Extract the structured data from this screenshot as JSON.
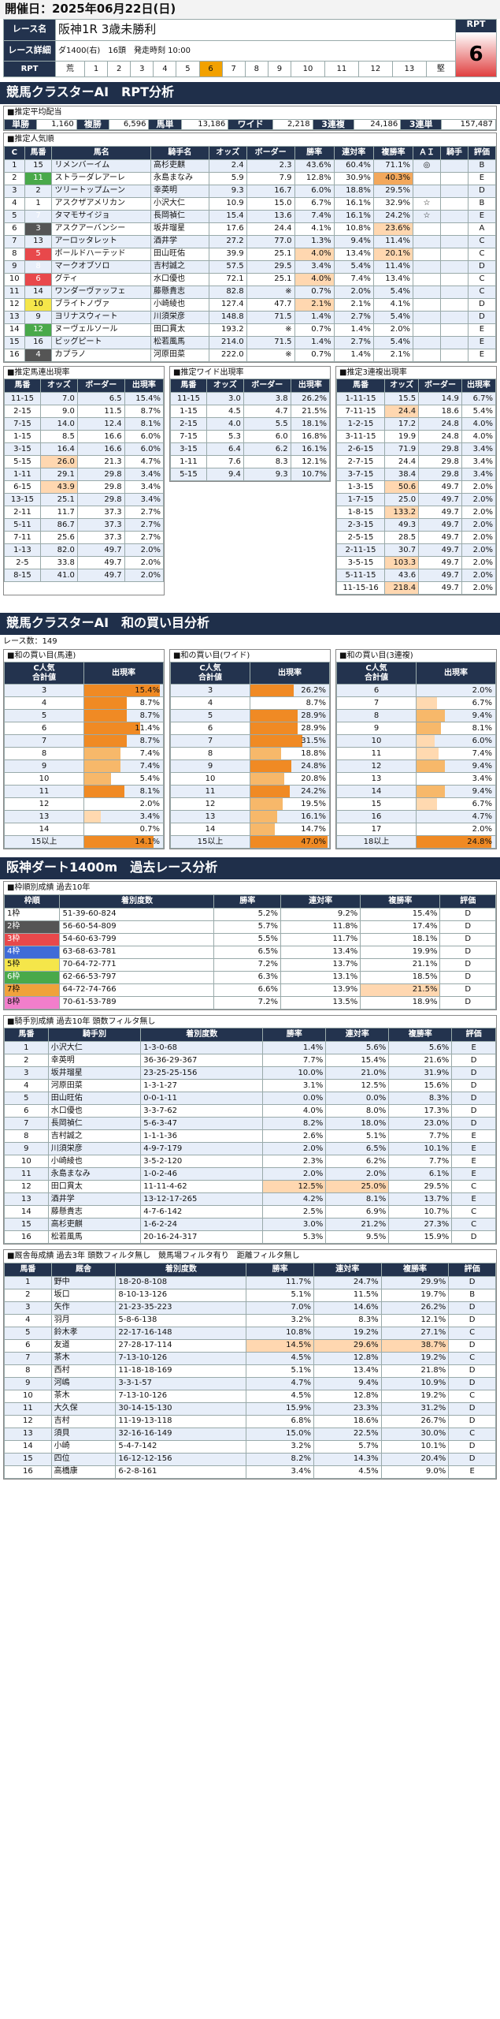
{
  "header": {
    "date": "開催日：2025年06月22日(日)"
  },
  "race": {
    "name_label": "レース名",
    "name": "阪神1R 3歳未勝利",
    "detail_label": "レース詳細",
    "detail": "ダ1400(右)　16頭　発走時刻 10:00",
    "rpt_label": "RPT",
    "rpt_box_label": "RPT",
    "rpt_value": "6",
    "rpt_scale": [
      "荒",
      "1",
      "2",
      "3",
      "4",
      "5",
      "6",
      "7",
      "8",
      "9",
      "10",
      "11",
      "12",
      "13",
      "堅"
    ]
  },
  "rpt_section": {
    "title": "競馬クラスターAI　RPT分析",
    "payout_title": "■推定平均配当",
    "payouts": [
      {
        "k": "単勝",
        "v": "1,160"
      },
      {
        "k": "複勝",
        "v": "6,596"
      },
      {
        "k": "馬単",
        "v": "13,186"
      },
      {
        "k": "ワイド",
        "v": "2,218"
      },
      {
        "k": "3連複",
        "v": "24,186"
      },
      {
        "k": "3連単",
        "v": "157,487"
      }
    ],
    "pop_title": "■推定人気順",
    "pop_headers": [
      "C",
      "馬番",
      "馬名",
      "騎手名",
      "オッズ",
      "ボーダー",
      "勝率",
      "連対率",
      "複勝率",
      "ＡＩ",
      "騎手",
      "評価"
    ],
    "pop_rows": [
      [
        "1",
        "15",
        "リメンバーイム",
        "高杉吏麒",
        "2.4",
        "2.3",
        "43.6%",
        "60.4%",
        "71.1%",
        "◎",
        "",
        "B"
      ],
      [
        "2",
        "11",
        "ストラーダレアーレ",
        "永島まなみ",
        "5.9",
        "7.9",
        "12.8%",
        "30.9%",
        "40.3%",
        "",
        "",
        "E"
      ],
      [
        "3",
        "2",
        "ツリートップムーン",
        "幸英明",
        "9.3",
        "16.7",
        "6.0%",
        "18.8%",
        "29.5%",
        "",
        "",
        "D"
      ],
      [
        "4",
        "1",
        "アスクザアメリカン",
        "小沢大仁",
        "10.9",
        "15.0",
        "6.7%",
        "16.1%",
        "32.9%",
        "☆",
        "",
        "B"
      ],
      [
        "5",
        "7",
        "タマモサイジョ",
        "長岡禎仁",
        "15.4",
        "13.6",
        "7.4%",
        "16.1%",
        "24.2%",
        "☆",
        "",
        "E"
      ],
      [
        "6",
        "3",
        "アスクアーバンシー",
        "坂井瑠星",
        "17.6",
        "24.4",
        "4.1%",
        "10.8%",
        "23.6%",
        "",
        "",
        "A"
      ],
      [
        "7",
        "13",
        "アーロッタレット",
        "酒井学",
        "27.2",
        "77.0",
        "1.3%",
        "9.4%",
        "11.4%",
        "",
        "",
        "C"
      ],
      [
        "8",
        "5",
        "ボールドハーテッド",
        "田山旺佑",
        "39.9",
        "25.1",
        "4.0%",
        "13.4%",
        "20.1%",
        "",
        "",
        "C"
      ],
      [
        "9",
        "8",
        "マークオブソロ",
        "吉村誠之",
        "57.5",
        "29.5",
        "3.4%",
        "5.4%",
        "11.4%",
        "",
        "",
        "D"
      ],
      [
        "10",
        "6",
        "グティ",
        "水口優也",
        "72.1",
        "25.1",
        "4.0%",
        "7.4%",
        "13.4%",
        "",
        "",
        "C"
      ],
      [
        "11",
        "14",
        "ワンダーヴァッフェ",
        "藤懸貴志",
        "82.8",
        "※",
        "0.7%",
        "2.0%",
        "5.4%",
        "",
        "",
        "C"
      ],
      [
        "12",
        "10",
        "ブライトノヴァ",
        "小崎綾也",
        "127.4",
        "47.7",
        "2.1%",
        "2.1%",
        "4.1%",
        "",
        "",
        "D"
      ],
      [
        "13",
        "9",
        "ヨリナスウィート",
        "川須栄彦",
        "148.8",
        "71.5",
        "1.4%",
        "2.7%",
        "5.4%",
        "",
        "",
        "D"
      ],
      [
        "14",
        "12",
        "ヌーヴェルソール",
        "田口貫太",
        "193.2",
        "※",
        "0.7%",
        "1.4%",
        "2.0%",
        "",
        "",
        "E"
      ],
      [
        "15",
        "16",
        "ビッグピート",
        "松若風馬",
        "214.0",
        "71.5",
        "1.4%",
        "2.7%",
        "5.4%",
        "",
        "",
        "E"
      ],
      [
        "16",
        "4",
        "カプラノ",
        "河原田菜",
        "222.0",
        "※",
        "0.7%",
        "1.4%",
        "2.1%",
        "",
        "",
        "E"
      ]
    ],
    "umatan_title": "■推定馬連出現率",
    "umatan_headers": [
      "馬番",
      "オッズ",
      "ボーダー",
      "出現率"
    ],
    "umatan_rows": [
      [
        "11-15",
        "7.0",
        "6.5",
        "15.4%"
      ],
      [
        "2-15",
        "9.0",
        "11.5",
        "8.7%"
      ],
      [
        "7-15",
        "14.0",
        "12.4",
        "8.1%"
      ],
      [
        "1-15",
        "8.5",
        "16.6",
        "6.0%"
      ],
      [
        "3-15",
        "16.4",
        "16.6",
        "6.0%"
      ],
      [
        "5-15",
        "26.0",
        "21.3",
        "4.7%"
      ],
      [
        "1-11",
        "29.1",
        "29.8",
        "3.4%"
      ],
      [
        "6-15",
        "43.9",
        "29.8",
        "3.4%"
      ],
      [
        "13-15",
        "25.1",
        "29.8",
        "3.4%"
      ],
      [
        "2-11",
        "11.7",
        "37.3",
        "2.7%"
      ],
      [
        "5-11",
        "86.7",
        "37.3",
        "2.7%"
      ],
      [
        "7-11",
        "25.6",
        "37.3",
        "2.7%"
      ],
      [
        "1-13",
        "82.0",
        "49.7",
        "2.0%"
      ],
      [
        "2-5",
        "33.8",
        "49.7",
        "2.0%"
      ],
      [
        "8-15",
        "41.0",
        "49.7",
        "2.0%"
      ]
    ],
    "wide_title": "■推定ワイド出現率",
    "wide_headers": [
      "馬番",
      "オッズ",
      "ボーダー",
      "出現率"
    ],
    "wide_rows": [
      [
        "11-15",
        "3.0",
        "3.8",
        "26.2%"
      ],
      [
        "1-15",
        "4.5",
        "4.7",
        "21.5%"
      ],
      [
        "2-15",
        "4.0",
        "5.5",
        "18.1%"
      ],
      [
        "7-15",
        "5.3",
        "6.0",
        "16.8%"
      ],
      [
        "3-15",
        "6.4",
        "6.2",
        "16.1%"
      ],
      [
        "1-11",
        "7.6",
        "8.3",
        "12.1%"
      ],
      [
        "5-15",
        "9.4",
        "9.3",
        "10.7%"
      ]
    ],
    "trio_title": "■推定3連複出現率",
    "trio_headers": [
      "馬番",
      "オッズ",
      "ボーダー",
      "出現率"
    ],
    "trio_rows": [
      [
        "1-11-15",
        "15.5",
        "14.9",
        "6.7%"
      ],
      [
        "7-11-15",
        "24.4",
        "18.6",
        "5.4%"
      ],
      [
        "1-2-15",
        "17.2",
        "24.8",
        "4.0%"
      ],
      [
        "3-11-15",
        "19.9",
        "24.8",
        "4.0%"
      ],
      [
        "2-6-15",
        "71.9",
        "29.8",
        "3.4%"
      ],
      [
        "2-7-15",
        "24.4",
        "29.8",
        "3.4%"
      ],
      [
        "3-7-15",
        "38.4",
        "29.8",
        "3.4%"
      ],
      [
        "1-3-15",
        "50.6",
        "49.7",
        "2.0%"
      ],
      [
        "1-7-15",
        "25.0",
        "49.7",
        "2.0%"
      ],
      [
        "1-8-15",
        "133.2",
        "49.7",
        "2.0%"
      ],
      [
        "2-3-15",
        "49.3",
        "49.7",
        "2.0%"
      ],
      [
        "2-5-15",
        "28.5",
        "49.7",
        "2.0%"
      ],
      [
        "2-11-15",
        "30.7",
        "49.7",
        "2.0%"
      ],
      [
        "3-5-15",
        "103.3",
        "49.7",
        "2.0%"
      ],
      [
        "5-11-15",
        "43.6",
        "49.7",
        "2.0%"
      ],
      [
        "11-15-16",
        "218.4",
        "49.7",
        "2.0%"
      ]
    ]
  },
  "wa_section": {
    "title": "競馬クラスターAI　和の買い目分析",
    "count": "レース数：149",
    "umaren_title": "■和の買い目(馬連)",
    "wide_title": "■和の買い目(ワイド)",
    "trio_title": "■和の買い目(3連複)",
    "col_h1": "C人気\n合計値",
    "col_h2": "出現率",
    "umaren": [
      [
        "3",
        "15.4%"
      ],
      [
        "4",
        "8.7%"
      ],
      [
        "5",
        "8.7%"
      ],
      [
        "6",
        "11.4%"
      ],
      [
        "7",
        "8.7%"
      ],
      [
        "8",
        "7.4%"
      ],
      [
        "9",
        "7.4%"
      ],
      [
        "10",
        "5.4%"
      ],
      [
        "11",
        "8.1%"
      ],
      [
        "12",
        "2.0%"
      ],
      [
        "13",
        "3.4%"
      ],
      [
        "14",
        "0.7%"
      ],
      [
        "15以上",
        "14.1%"
      ]
    ],
    "wide": [
      [
        "3",
        "26.2%"
      ],
      [
        "4",
        "8.7%"
      ],
      [
        "5",
        "28.9%"
      ],
      [
        "6",
        "28.9%"
      ],
      [
        "7",
        "31.5%"
      ],
      [
        "8",
        "18.8%"
      ],
      [
        "9",
        "24.8%"
      ],
      [
        "10",
        "20.8%"
      ],
      [
        "11",
        "24.2%"
      ],
      [
        "12",
        "19.5%"
      ],
      [
        "13",
        "16.1%"
      ],
      [
        "14",
        "14.7%"
      ],
      [
        "15以上",
        "47.0%"
      ]
    ],
    "trio": [
      [
        "6",
        "2.0%"
      ],
      [
        "7",
        "6.7%"
      ],
      [
        "8",
        "9.4%"
      ],
      [
        "9",
        "8.1%"
      ],
      [
        "10",
        "6.0%"
      ],
      [
        "11",
        "7.4%"
      ],
      [
        "12",
        "9.4%"
      ],
      [
        "13",
        "3.4%"
      ],
      [
        "14",
        "9.4%"
      ],
      [
        "15",
        "6.7%"
      ],
      [
        "16",
        "4.7%"
      ],
      [
        "17",
        "2.0%"
      ],
      [
        "18以上",
        "24.8%"
      ]
    ]
  },
  "course_section": {
    "title": "阪神ダート1400m　過去レース分析",
    "gate_title": "■枠順別成績 過去10年",
    "gate_headers": [
      "枠順",
      "着別度数",
      "勝率",
      "連対率",
      "複勝率",
      "評価"
    ],
    "gate_rows": [
      [
        "1枠",
        "51-39-60-824",
        "5.2%",
        "9.2%",
        "15.4%",
        "D"
      ],
      [
        "2枠",
        "56-60-54-809",
        "5.7%",
        "11.8%",
        "17.4%",
        "D"
      ],
      [
        "3枠",
        "54-60-63-799",
        "5.5%",
        "11.7%",
        "18.1%",
        "D"
      ],
      [
        "4枠",
        "63-68-63-781",
        "6.5%",
        "13.4%",
        "19.9%",
        "D"
      ],
      [
        "5枠",
        "70-64-72-771",
        "7.2%",
        "13.7%",
        "21.1%",
        "D"
      ],
      [
        "6枠",
        "62-66-53-797",
        "6.3%",
        "13.1%",
        "18.5%",
        "D"
      ],
      [
        "7枠",
        "64-72-74-766",
        "6.6%",
        "13.9%",
        "21.5%",
        "D"
      ],
      [
        "8枠",
        "70-61-53-789",
        "7.2%",
        "13.5%",
        "18.9%",
        "D"
      ]
    ],
    "jockey_title": "■騎手別成績 過去10年 頭数フィルタ無し",
    "jockey_headers": [
      "馬番",
      "騎手別",
      "着別度数",
      "勝率",
      "連対率",
      "複勝率",
      "評価"
    ],
    "jockey_rows": [
      [
        "1",
        "小沢大仁",
        "1-3-0-68",
        "1.4%",
        "5.6%",
        "5.6%",
        "E"
      ],
      [
        "2",
        "幸英明",
        "36-36-29-367",
        "7.7%",
        "15.4%",
        "21.6%",
        "D"
      ],
      [
        "3",
        "坂井瑠星",
        "23-25-25-156",
        "10.0%",
        "21.0%",
        "31.9%",
        "D"
      ],
      [
        "4",
        "河原田菜",
        "1-3-1-27",
        "3.1%",
        "12.5%",
        "15.6%",
        "D"
      ],
      [
        "5",
        "田山旺佑",
        "0-0-1-11",
        "0.0%",
        "0.0%",
        "8.3%",
        "D"
      ],
      [
        "6",
        "水口優也",
        "3-3-7-62",
        "4.0%",
        "8.0%",
        "17.3%",
        "D"
      ],
      [
        "7",
        "長岡禎仁",
        "5-6-3-47",
        "8.2%",
        "18.0%",
        "23.0%",
        "D"
      ],
      [
        "8",
        "吉村誠之",
        "1-1-1-36",
        "2.6%",
        "5.1%",
        "7.7%",
        "E"
      ],
      [
        "9",
        "川須栄彦",
        "4-9-7-179",
        "2.0%",
        "6.5%",
        "10.1%",
        "E"
      ],
      [
        "10",
        "小崎綾也",
        "3-5-2-120",
        "2.3%",
        "6.2%",
        "7.7%",
        "E"
      ],
      [
        "11",
        "永島まなみ",
        "1-0-2-46",
        "2.0%",
        "2.0%",
        "6.1%",
        "E"
      ],
      [
        "12",
        "田口貫太",
        "11-11-4-62",
        "12.5%",
        "25.0%",
        "29.5%",
        "C"
      ],
      [
        "13",
        "酒井学",
        "13-12-17-265",
        "4.2%",
        "8.1%",
        "13.7%",
        "E"
      ],
      [
        "14",
        "藤懸貴志",
        "4-7-6-142",
        "2.5%",
        "6.9%",
        "10.7%",
        "C"
      ],
      [
        "15",
        "高杉吏麒",
        "1-6-2-24",
        "3.0%",
        "21.2%",
        "27.3%",
        "C"
      ],
      [
        "16",
        "松若風馬",
        "20-16-24-317",
        "5.3%",
        "9.5%",
        "15.9%",
        "D"
      ]
    ],
    "sire_title": "■厩舎毎成績 過去3年 頭数フィルタ無し　競馬場フィルタ有り　距離フィルタ無し",
    "sire_headers": [
      "馬番",
      "厩舎",
      "着別度数",
      "勝率",
      "連対率",
      "複勝率",
      "評価"
    ],
    "sire_rows": [
      [
        "1",
        "野中",
        "18-20-8-108",
        "11.7%",
        "24.7%",
        "29.9%",
        "D"
      ],
      [
        "2",
        "坂口",
        "8-10-13-126",
        "5.1%",
        "11.5%",
        "19.7%",
        "B"
      ],
      [
        "3",
        "矢作",
        "21-23-35-223",
        "7.0%",
        "14.6%",
        "26.2%",
        "D"
      ],
      [
        "4",
        "羽月",
        "5-8-6-138",
        "3.2%",
        "8.3%",
        "12.1%",
        "D"
      ],
      [
        "5",
        "鈴木孝",
        "22-17-16-148",
        "10.8%",
        "19.2%",
        "27.1%",
        "C"
      ],
      [
        "6",
        "友道",
        "27-28-17-114",
        "14.5%",
        "29.6%",
        "38.7%",
        "D"
      ],
      [
        "7",
        "茶木",
        "7-13-10-126",
        "4.5%",
        "12.8%",
        "19.2%",
        "C"
      ],
      [
        "8",
        "西村",
        "11-18-18-169",
        "5.1%",
        "13.4%",
        "21.8%",
        "D"
      ],
      [
        "9",
        "河嶋",
        "3-3-1-57",
        "4.7%",
        "9.4%",
        "10.9%",
        "D"
      ],
      [
        "10",
        "茶木",
        "7-13-10-126",
        "4.5%",
        "12.8%",
        "19.2%",
        "C"
      ],
      [
        "11",
        "大久保",
        "30-14-15-130",
        "15.9%",
        "23.3%",
        "31.2%",
        "D"
      ],
      [
        "12",
        "吉村",
        "11-19-13-118",
        "6.8%",
        "18.6%",
        "26.7%",
        "D"
      ],
      [
        "13",
        "須貝",
        "32-16-16-149",
        "15.0%",
        "22.5%",
        "30.0%",
        "C"
      ],
      [
        "14",
        "小崎",
        "5-4-7-142",
        "3.2%",
        "5.7%",
        "10.1%",
        "D"
      ],
      [
        "15",
        "四位",
        "16-12-12-156",
        "8.2%",
        "14.3%",
        "20.4%",
        "D"
      ],
      [
        "16",
        "高橋康",
        "6-2-8-161",
        "3.4%",
        "4.5%",
        "9.0%",
        "E"
      ]
    ]
  }
}
